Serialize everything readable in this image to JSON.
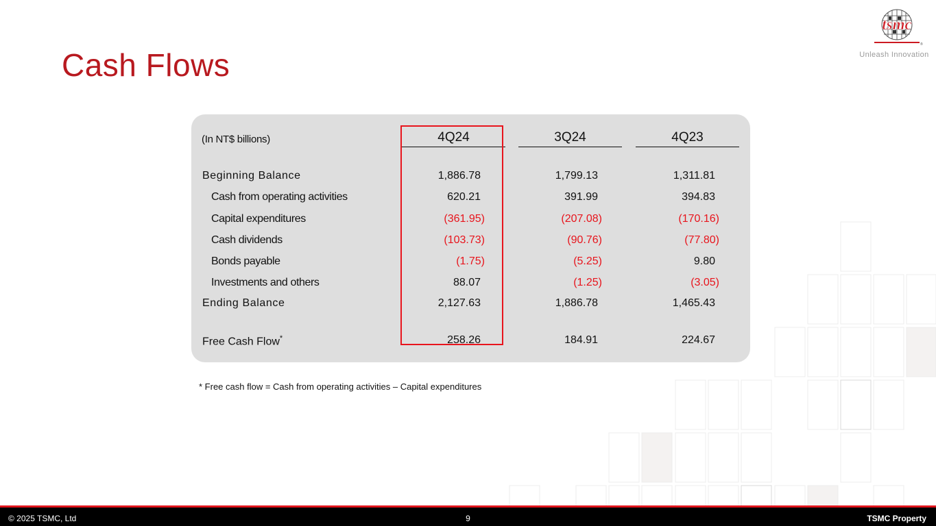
{
  "header": {
    "title": "Cash Flows",
    "brand": "tsmc",
    "tagline": "Unleash Innovation"
  },
  "table": {
    "units_label": "(In NT$ billions)",
    "columns": [
      "4Q24",
      "3Q24",
      "4Q23"
    ],
    "highlighted_column": "4Q24",
    "rows": [
      {
        "label": "Beginning Balance",
        "values": [
          "1,886.78",
          "1,799.13",
          "1,311.81"
        ]
      },
      {
        "label": "Cash from operating activities",
        "values": [
          "620.21",
          "391.99",
          "394.83"
        ]
      },
      {
        "label": "Capital expenditures",
        "values": [
          "(361.95)",
          "(207.08)",
          "(170.16)"
        ]
      },
      {
        "label": "Cash dividends",
        "values": [
          "(103.73)",
          "(90.76)",
          "(77.80)"
        ]
      },
      {
        "label": "Bonds payable",
        "values": [
          "(1.75)",
          "(5.25)",
          "9.80"
        ]
      },
      {
        "label": "Investments and others",
        "values": [
          "88.07",
          "(1.25)",
          "(3.05)"
        ]
      },
      {
        "label": "Ending Balance",
        "values": [
          "2,127.63",
          "1,886.78",
          "1,465.43"
        ]
      },
      {
        "label": "Free Cash Flow",
        "marker": "*",
        "values": [
          "258.26",
          "184.91",
          "224.67"
        ]
      }
    ]
  },
  "footnote": "* Free cash flow  = Cash from operating activities  – Capital expenditures",
  "footer": {
    "copyright": "©  2025 TSMC, Ltd",
    "page": "9",
    "property": "TSMC Property"
  },
  "colors": {
    "title": "#b8191f",
    "negative": "#e8141c",
    "highlight_box": "#e8141c",
    "panel": "#dedede",
    "footer_bar": "#000000",
    "footer_rule": "#e0141c"
  }
}
